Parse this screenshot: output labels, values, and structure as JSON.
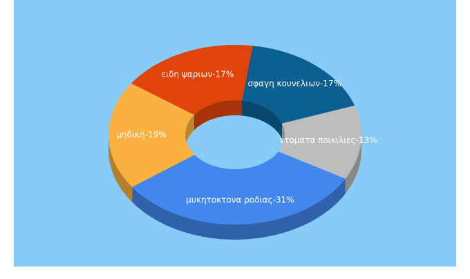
{
  "chart_data": {
    "type": "donut3d",
    "values": [
      17,
      13,
      31,
      19,
      17
    ],
    "value_labels": [
      "σφαγη κουνελιων-17%",
      "ντοματα ποικιλιες-13%",
      "μυκητοκτονα ροδιας-31%",
      "μηδική-19%",
      "ειδη ψαριων-17%"
    ],
    "colors": [
      "#0b5e92",
      "#bdbdbd",
      "#4287ee",
      "#fbb13f",
      "#e0440b"
    ]
  }
}
